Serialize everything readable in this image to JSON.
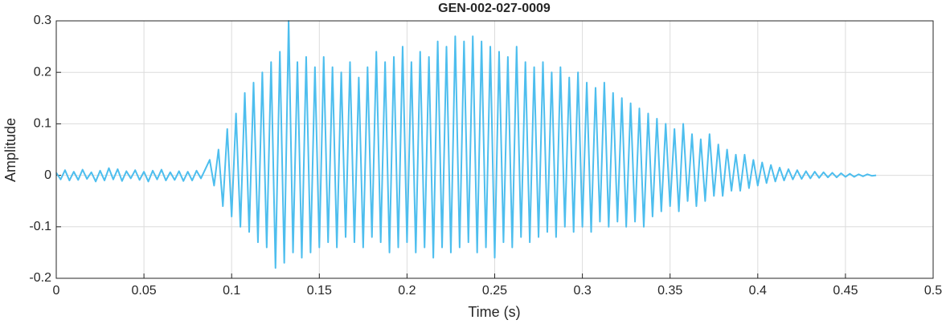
{
  "chart_data": {
    "type": "line",
    "title": "GEN-002-027-0009",
    "xlabel": "Time (s)",
    "ylabel": "Amplitude",
    "xlim": [
      0,
      0.5
    ],
    "xticks": [
      0,
      0.05,
      0.1,
      0.15,
      0.2,
      0.25,
      0.3,
      0.35,
      0.4,
      0.45,
      0.5
    ],
    "ylim": [
      -0.2,
      0.3
    ],
    "yticks": [
      -0.2,
      -0.1,
      0,
      0.1,
      0.2,
      0.3
    ],
    "grid": true,
    "x": [
      0,
      0.0025,
      0.005,
      0.0075,
      0.01,
      0.0125,
      0.015,
      0.0175,
      0.02,
      0.0225,
      0.025,
      0.0275,
      0.03,
      0.0325,
      0.035,
      0.0375,
      0.04,
      0.0425,
      0.045,
      0.0475,
      0.05,
      0.0525,
      0.055,
      0.0575,
      0.06,
      0.0625,
      0.065,
      0.0675,
      0.07,
      0.0725,
      0.075,
      0.0775,
      0.08,
      0.0825,
      0.085,
      0.0875,
      0.09,
      0.0925,
      0.095,
      0.0975,
      0.1,
      0.1025,
      0.105,
      0.1075,
      0.11,
      0.1125,
      0.115,
      0.1175,
      0.12,
      0.1225,
      0.125,
      0.1275,
      0.13,
      0.1325,
      0.135,
      0.1375,
      0.14,
      0.1425,
      0.145,
      0.1475,
      0.15,
      0.1525,
      0.155,
      0.1575,
      0.16,
      0.1625,
      0.165,
      0.1675,
      0.17,
      0.1725,
      0.175,
      0.1775,
      0.18,
      0.1825,
      0.185,
      0.1875,
      0.19,
      0.1925,
      0.195,
      0.1975,
      0.2,
      0.2025,
      0.205,
      0.2075,
      0.21,
      0.2125,
      0.215,
      0.2175,
      0.22,
      0.2225,
      0.225,
      0.2275,
      0.23,
      0.2325,
      0.235,
      0.2375,
      0.24,
      0.2425,
      0.245,
      0.2475,
      0.25,
      0.2525,
      0.255,
      0.2575,
      0.26,
      0.2625,
      0.265,
      0.2675,
      0.27,
      0.2725,
      0.275,
      0.2775,
      0.28,
      0.2825,
      0.285,
      0.2875,
      0.29,
      0.2925,
      0.295,
      0.2975,
      0.3,
      0.3025,
      0.305,
      0.3075,
      0.31,
      0.3125,
      0.315,
      0.3175,
      0.32,
      0.3225,
      0.325,
      0.3275,
      0.33,
      0.3325,
      0.335,
      0.3375,
      0.34,
      0.3425,
      0.345,
      0.3475,
      0.35,
      0.3525,
      0.355,
      0.3575,
      0.36,
      0.3625,
      0.365,
      0.3675,
      0.37,
      0.3725,
      0.375,
      0.3775,
      0.38,
      0.3825,
      0.385,
      0.3875,
      0.39,
      0.3925,
      0.395,
      0.3975,
      0.4,
      0.4025,
      0.405,
      0.4075,
      0.41,
      0.4125,
      0.415,
      0.4175,
      0.42,
      0.4225,
      0.425,
      0.4275,
      0.43,
      0.4325,
      0.435,
      0.4375,
      0.44,
      0.4425,
      0.445,
      0.4475,
      0.45,
      0.4525,
      0.455,
      0.4575,
      0.46,
      0.4625,
      0.465,
      0.4675
    ],
    "series": [
      {
        "color": "#4DBEEE",
        "values": [
          0.005,
          -0.008,
          0.01,
          -0.01,
          0.007,
          -0.009,
          0.011,
          -0.007,
          0.006,
          -0.012,
          0.009,
          -0.01,
          0.014,
          -0.008,
          0.012,
          -0.011,
          0.008,
          -0.006,
          0.01,
          -0.009,
          0.007,
          -0.012,
          0.009,
          -0.008,
          0.011,
          -0.01,
          0.006,
          -0.009,
          0.008,
          -0.011,
          0.007,
          -0.01,
          0.009,
          -0.006,
          0.012,
          0.03,
          -0.02,
          0.05,
          -0.06,
          0.09,
          -0.08,
          0.12,
          -0.1,
          0.16,
          -0.11,
          0.18,
          -0.13,
          0.2,
          -0.14,
          0.22,
          -0.18,
          0.24,
          -0.17,
          0.3,
          -0.15,
          0.22,
          -0.16,
          0.23,
          -0.15,
          0.21,
          -0.14,
          0.23,
          -0.13,
          0.21,
          -0.14,
          0.2,
          -0.12,
          0.22,
          -0.13,
          0.19,
          -0.14,
          0.21,
          -0.12,
          0.24,
          -0.13,
          0.22,
          -0.15,
          0.23,
          -0.14,
          0.25,
          -0.13,
          0.22,
          -0.15,
          0.24,
          -0.14,
          0.23,
          -0.16,
          0.26,
          -0.14,
          0.25,
          -0.15,
          0.27,
          -0.14,
          0.26,
          -0.13,
          0.27,
          -0.15,
          0.26,
          -0.14,
          0.25,
          -0.16,
          0.24,
          -0.13,
          0.23,
          -0.14,
          0.25,
          -0.12,
          0.22,
          -0.13,
          0.21,
          -0.12,
          0.22,
          -0.11,
          0.2,
          -0.12,
          0.21,
          -0.1,
          0.19,
          -0.11,
          0.2,
          -0.1,
          0.18,
          -0.11,
          0.17,
          -0.09,
          0.18,
          -0.1,
          0.16,
          -0.09,
          0.15,
          -0.1,
          0.14,
          -0.09,
          0.13,
          -0.1,
          0.12,
          -0.08,
          0.11,
          -0.07,
          0.1,
          -0.06,
          0.09,
          -0.07,
          0.1,
          -0.05,
          0.08,
          -0.06,
          0.07,
          -0.05,
          0.08,
          -0.04,
          0.06,
          -0.04,
          0.05,
          -0.03,
          0.04,
          -0.03,
          0.04,
          -0.025,
          0.03,
          -0.02,
          0.025,
          -0.015,
          0.02,
          -0.012,
          0.015,
          -0.01,
          0.012,
          -0.008,
          0.01,
          -0.007,
          0.008,
          -0.006,
          0.007,
          -0.005,
          0.006,
          -0.004,
          0.005,
          -0.004,
          0.004,
          -0.003,
          0.003,
          -0.003,
          0.002,
          -0.002,
          0.002,
          -0.001,
          0
        ]
      }
    ]
  }
}
